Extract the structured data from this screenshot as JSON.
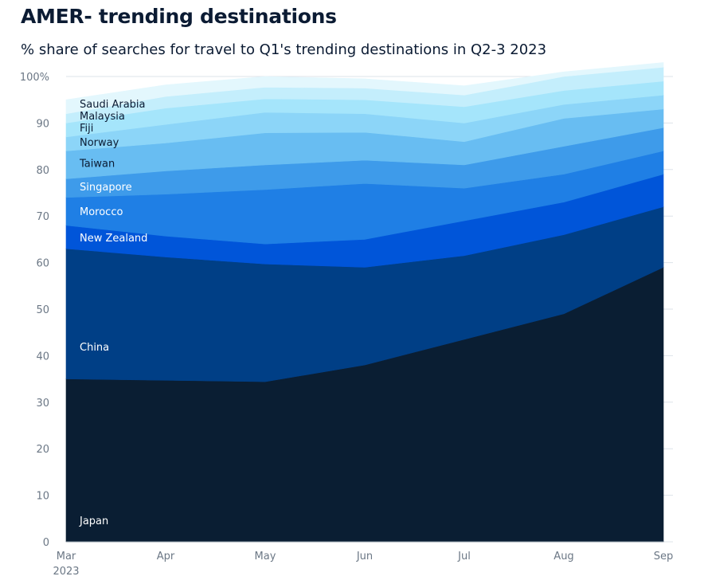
{
  "chart_data": {
    "type": "area",
    "stacked": true,
    "title": "AMER- trending destinations",
    "subtitle": "% share of searches for travel to Q1's trending destinations in Q2-3 2023",
    "x_tick_labels": [
      "Mar",
      "Apr",
      "May",
      "Jun",
      "Jul",
      "Aug",
      "Sep"
    ],
    "x_year_label": "2023",
    "y_tick_labels": [
      "0",
      "10",
      "20",
      "30",
      "40",
      "50",
      "60",
      "70",
      "80",
      "90",
      "100%"
    ],
    "ylim": [
      0,
      100
    ],
    "grid": true,
    "categories": [
      "Mar",
      "Apr",
      "May",
      "Jun",
      "Jul",
      "Aug",
      "Sep"
    ],
    "series": [
      {
        "name": "Japan",
        "values": [
          35,
          34.7,
          34.4,
          38,
          43.5,
          49,
          59
        ],
        "color": "#0a1e33",
        "label_color": "#ffffff"
      },
      {
        "name": "China",
        "values": [
          28,
          26.5,
          25.3,
          21,
          18,
          17,
          13
        ],
        "color": "#003f86",
        "label_color": "#ffffff"
      },
      {
        "name": "New Zealand",
        "values": [
          5,
          4.5,
          4.3,
          6,
          7.5,
          7,
          7
        ],
        "color": "#0055d9",
        "label_color": "#ffffff"
      },
      {
        "name": "Morocco",
        "values": [
          6,
          9,
          11.7,
          12,
          7,
          6,
          5
        ],
        "color": "#1f7fe5",
        "label_color": "#ffffff"
      },
      {
        "name": "Singapore",
        "values": [
          4,
          5,
          5.3,
          5,
          5,
          6,
          5
        ],
        "color": "#3e9bea",
        "label_color": "#ffffff"
      },
      {
        "name": "Taiwan",
        "values": [
          6,
          6,
          6.9,
          6,
          5,
          6,
          4
        ],
        "color": "#68bdf2",
        "label_color": "#0b1b33"
      },
      {
        "name": "Norway",
        "values": [
          3,
          4,
          4.4,
          4,
          4,
          3,
          3
        ],
        "color": "#8cd5f8",
        "label_color": "#0b1b33"
      },
      {
        "name": "Fiji",
        "values": [
          3,
          3.5,
          2.9,
          3,
          3.5,
          3,
          3
        ],
        "color": "#a5e5fb",
        "label_color": "#0b1b33"
      },
      {
        "name": "Malaysia",
        "values": [
          2,
          2.5,
          2.5,
          2.5,
          2.5,
          3,
          3
        ],
        "color": "#c4eefc",
        "label_color": "#0b1b33"
      },
      {
        "name": "Saudi Arabia",
        "values": [
          3,
          2.5,
          2.3,
          2,
          2,
          1,
          1
        ],
        "color": "#e3f7fd",
        "label_color": "#0b1b33"
      }
    ]
  }
}
